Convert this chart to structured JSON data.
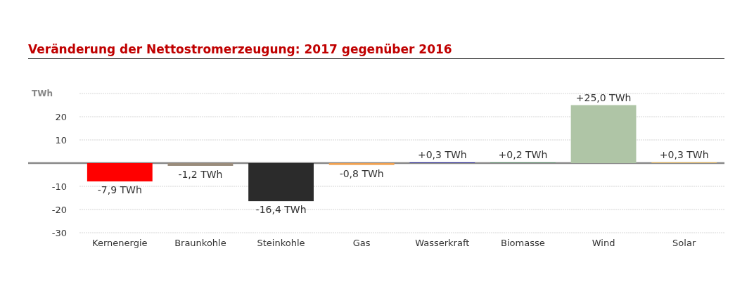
{
  "chart_data": {
    "type": "bar",
    "title": "Veränderung der Nettostromerzeugung: 2017 gegenüber 2016",
    "ylabel": "TWh",
    "categories": [
      "Kernenergie",
      "Braunkohle",
      "Steinkohle",
      "Gas",
      "Wasserkraft",
      "Biomasse",
      "Wind",
      "Solar"
    ],
    "values": [
      -7.9,
      -1.2,
      -16.4,
      -0.8,
      0.3,
      0.2,
      25.0,
      0.3
    ],
    "colors": [
      "#ff0000",
      "#9a8c7c",
      "#2b2b2b",
      "#f0a050",
      "#2a2a96",
      "#4a8a5e",
      "#afc5a6",
      "#e2b45a"
    ],
    "value_labels": [
      "-7,9 TWh",
      "-1,2 TWh",
      "-16,4 TWh",
      "-0,8 TWh",
      "+0,3 TWh",
      "+0,2 TWh",
      "+25,0 TWh",
      "+0,3 TWh"
    ],
    "ylim": [
      -30,
      30
    ],
    "yticks": [
      -30,
      -20,
      -10,
      {
        "value": 0,
        "label": null
      },
      10,
      20,
      {
        "value": 30,
        "label": null
      }
    ],
    "grid": "y"
  }
}
